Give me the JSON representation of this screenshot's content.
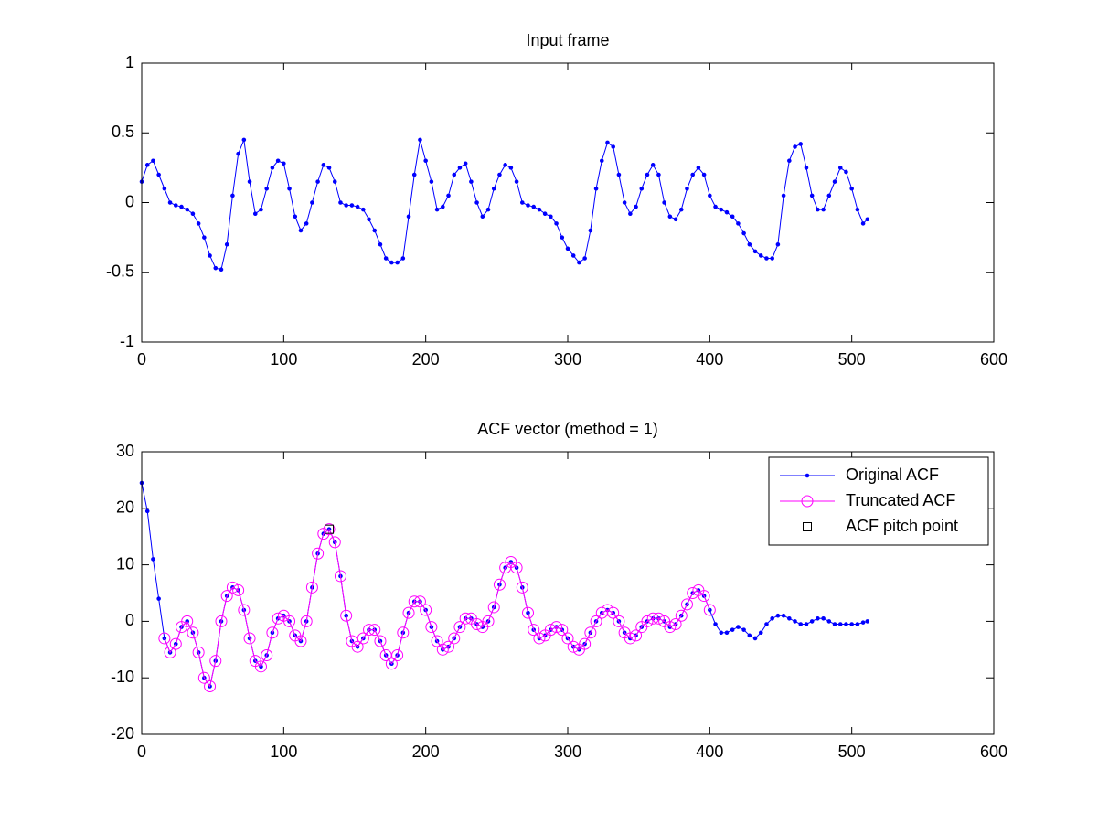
{
  "chart_data": [
    {
      "type": "line",
      "title": "Input frame",
      "xlim": [
        0,
        600
      ],
      "xticks": [
        0,
        100,
        200,
        300,
        400,
        500,
        600
      ],
      "ylim": [
        -1,
        1
      ],
      "yticks": [
        -1,
        -0.5,
        0,
        0.5,
        1
      ],
      "series": [
        {
          "color": "#0000ff",
          "marker": "dot",
          "line": true,
          "x": [
            0,
            4,
            8,
            12,
            16,
            20,
            24,
            28,
            32,
            36,
            40,
            44,
            48,
            52,
            56,
            60,
            64,
            68,
            72,
            76,
            80,
            84,
            88,
            92,
            96,
            100,
            104,
            108,
            112,
            116,
            120,
            124,
            128,
            132,
            136,
            140,
            144,
            148,
            152,
            156,
            160,
            164,
            168,
            172,
            176,
            180,
            184,
            188,
            192,
            196,
            200,
            204,
            208,
            212,
            216,
            220,
            224,
            228,
            232,
            236,
            240,
            244,
            248,
            252,
            256,
            260,
            264,
            268,
            272,
            276,
            280,
            284,
            288,
            292,
            296,
            300,
            304,
            308,
            312,
            316,
            320,
            324,
            328,
            332,
            336,
            340,
            344,
            348,
            352,
            356,
            360,
            364,
            368,
            372,
            376,
            380,
            384,
            388,
            392,
            396,
            400,
            404,
            408,
            412,
            416,
            420,
            424,
            428,
            432,
            436,
            440,
            444,
            448,
            452,
            456,
            460,
            464,
            468,
            472,
            476,
            480,
            484,
            488,
            492,
            496,
            500,
            504,
            508,
            511
          ],
          "values": [
            0.15,
            0.27,
            0.3,
            0.2,
            0.1,
            0,
            -0.02,
            -0.03,
            -0.05,
            -0.08,
            -0.15,
            -0.25,
            -0.38,
            -0.47,
            -0.48,
            -0.3,
            0.05,
            0.35,
            0.45,
            0.15,
            -0.08,
            -0.05,
            0.1,
            0.25,
            0.3,
            0.28,
            0.1,
            -0.1,
            -0.2,
            -0.15,
            0,
            0.15,
            0.27,
            0.25,
            0.15,
            0,
            -0.02,
            -0.02,
            -0.03,
            -0.05,
            -0.12,
            -0.2,
            -0.3,
            -0.4,
            -0.43,
            -0.43,
            -0.4,
            -0.1,
            0.2,
            0.45,
            0.3,
            0.15,
            -0.05,
            -0.03,
            0.05,
            0.2,
            0.25,
            0.28,
            0.15,
            0,
            -0.1,
            -0.05,
            0.1,
            0.2,
            0.27,
            0.25,
            0.15,
            0,
            -0.02,
            -0.03,
            -0.05,
            -0.08,
            -0.1,
            -0.15,
            -0.25,
            -0.33,
            -0.38,
            -0.43,
            -0.4,
            -0.2,
            0.1,
            0.3,
            0.43,
            0.4,
            0.2,
            0,
            -0.08,
            -0.03,
            0.1,
            0.2,
            0.27,
            0.2,
            0,
            -0.1,
            -0.12,
            -0.05,
            0.1,
            0.2,
            0.25,
            0.2,
            0.05,
            -0.03,
            -0.05,
            -0.07,
            -0.1,
            -0.15,
            -0.22,
            -0.3,
            -0.35,
            -0.38,
            -0.4,
            -0.4,
            -0.3,
            0.05,
            0.3,
            0.4,
            0.42,
            0.25,
            0.05,
            -0.05,
            -0.05,
            0.05,
            0.15,
            0.25,
            0.22,
            0.1,
            -0.05,
            -0.15,
            -0.12
          ]
        }
      ]
    },
    {
      "type": "line",
      "title": "ACF vector (method = 1)",
      "legend": "northeast",
      "xlim": [
        0,
        600
      ],
      "xticks": [
        0,
        100,
        200,
        300,
        400,
        500,
        600
      ],
      "ylim": [
        -20,
        30
      ],
      "yticks": [
        -20,
        -10,
        0,
        10,
        20,
        30
      ],
      "series": [
        {
          "name": "Original ACF",
          "color": "#0000ff",
          "marker": "dot",
          "line": true,
          "x": [
            0,
            4,
            8,
            12,
            16,
            20,
            24,
            28,
            32,
            36,
            40,
            44,
            48,
            52,
            56,
            60,
            64,
            68,
            72,
            76,
            80,
            84,
            88,
            92,
            96,
            100,
            104,
            108,
            112,
            116,
            120,
            124,
            128,
            132,
            136,
            140,
            144,
            148,
            152,
            156,
            160,
            164,
            168,
            172,
            176,
            180,
            184,
            188,
            192,
            196,
            200,
            204,
            208,
            212,
            216,
            220,
            224,
            228,
            232,
            236,
            240,
            244,
            248,
            252,
            256,
            260,
            264,
            268,
            272,
            276,
            280,
            284,
            288,
            292,
            296,
            300,
            304,
            308,
            312,
            316,
            320,
            324,
            328,
            332,
            336,
            340,
            344,
            348,
            352,
            356,
            360,
            364,
            368,
            372,
            376,
            380,
            384,
            388,
            392,
            396,
            400,
            404,
            408,
            412,
            416,
            420,
            424,
            428,
            432,
            436,
            440,
            444,
            448,
            452,
            456,
            460,
            464,
            468,
            472,
            476,
            480,
            484,
            488,
            492,
            496,
            500,
            504,
            508,
            511
          ],
          "values": [
            24.5,
            19.5,
            11,
            4,
            -3,
            -5.5,
            -4,
            -1,
            0,
            -2,
            -5.5,
            -10,
            -11.5,
            -7,
            0,
            4.5,
            6,
            5.5,
            2,
            -3,
            -7,
            -8,
            -6,
            -2,
            0.5,
            1,
            0,
            -2.5,
            -3.5,
            0,
            6,
            12,
            15.5,
            16.3,
            14,
            8,
            1,
            -3.5,
            -4.5,
            -3,
            -1.5,
            -1.5,
            -3.5,
            -6,
            -7.5,
            -6,
            -2,
            1.5,
            3.5,
            3.5,
            2,
            -1,
            -3.5,
            -5,
            -4.5,
            -3,
            -1,
            0.5,
            0.5,
            -0.5,
            -1,
            0,
            2.5,
            6.5,
            9.5,
            10.5,
            9.5,
            6,
            1.5,
            -1.5,
            -3,
            -2.5,
            -1.5,
            -1,
            -1.5,
            -3,
            -4.5,
            -5,
            -4,
            -2,
            0,
            1.5,
            2,
            1.5,
            0,
            -2,
            -3,
            -2.5,
            -1,
            0,
            0.5,
            0.5,
            0,
            -1,
            -0.5,
            1,
            3,
            5,
            5.5,
            4.5,
            2,
            -0.5,
            -2,
            -2,
            -1.5,
            -1,
            -1.5,
            -2.5,
            -3,
            -2,
            -0.5,
            0.5,
            1,
            1,
            0.5,
            0,
            -0.5,
            -0.5,
            0,
            0.5,
            0.5,
            0,
            -0.5,
            -0.5,
            -0.5,
            -0.5,
            -0.5,
            -0.2,
            0
          ]
        },
        {
          "name": "Truncated ACF",
          "color": "#ff00ff",
          "marker": "circle",
          "line": true,
          "x": [
            16,
            20,
            24,
            28,
            32,
            36,
            40,
            44,
            48,
            52,
            56,
            60,
            64,
            68,
            72,
            76,
            80,
            84,
            88,
            92,
            96,
            100,
            104,
            108,
            112,
            116,
            120,
            124,
            128,
            132,
            136,
            140,
            144,
            148,
            152,
            156,
            160,
            164,
            168,
            172,
            176,
            180,
            184,
            188,
            192,
            196,
            200,
            204,
            208,
            212,
            216,
            220,
            224,
            228,
            232,
            236,
            240,
            244,
            248,
            252,
            256,
            260,
            264,
            268,
            272,
            276,
            280,
            284,
            288,
            292,
            296,
            300,
            304,
            308,
            312,
            316,
            320,
            324,
            328,
            332,
            336,
            340,
            344,
            348,
            352,
            356,
            360,
            364,
            368,
            372,
            376,
            380,
            384,
            388,
            392,
            396,
            400
          ],
          "values": [
            -3,
            -5.5,
            -4,
            -1,
            0,
            -2,
            -5.5,
            -10,
            -11.5,
            -7,
            0,
            4.5,
            6,
            5.5,
            2,
            -3,
            -7,
            -8,
            -6,
            -2,
            0.5,
            1,
            0,
            -2.5,
            -3.5,
            0,
            6,
            12,
            15.5,
            16.3,
            14,
            8,
            1,
            -3.5,
            -4.5,
            -3,
            -1.5,
            -1.5,
            -3.5,
            -6,
            -7.5,
            -6,
            -2,
            1.5,
            3.5,
            3.5,
            2,
            -1,
            -3.5,
            -5,
            -4.5,
            -3,
            -1,
            0.5,
            0.5,
            -0.5,
            -1,
            0,
            2.5,
            6.5,
            9.5,
            10.5,
            9.5,
            6,
            1.5,
            -1.5,
            -3,
            -2.5,
            -1.5,
            -1,
            -1.5,
            -3,
            -4.5,
            -5,
            -4,
            -2,
            0,
            1.5,
            2,
            1.5,
            0,
            -2,
            -3,
            -2.5,
            -1,
            0,
            0.5,
            0.5,
            0,
            -1,
            -0.5,
            1,
            3,
            5,
            5.5,
            4.5,
            2
          ]
        },
        {
          "name": "ACF pitch point",
          "color": "#000000",
          "marker": "square",
          "line": false,
          "x": [
            132
          ],
          "values": [
            16.3
          ]
        }
      ]
    }
  ]
}
